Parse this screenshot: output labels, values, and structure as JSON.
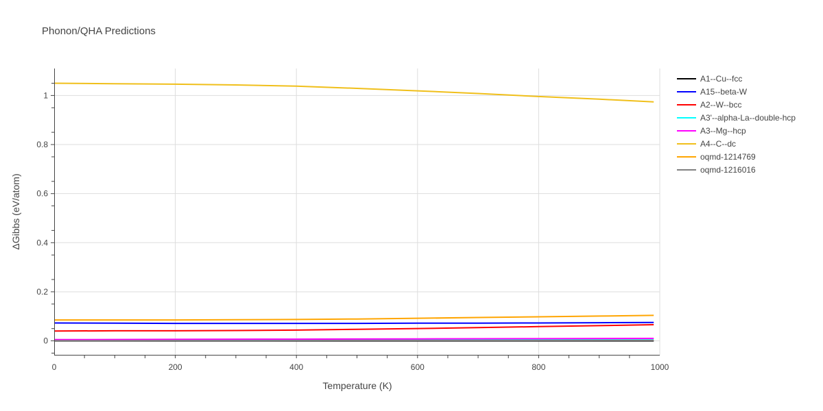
{
  "chart_data": {
    "type": "line",
    "title": "Phonon/QHA Predictions",
    "xlabel": "Temperature (K)",
    "ylabel": "ΔGibbs (eV/atom)",
    "xlim": [
      0,
      1000
    ],
    "ylim": [
      -0.057,
      1.11
    ],
    "xticks": [
      0,
      200,
      400,
      600,
      800,
      1000
    ],
    "yticks": [
      0,
      0.2,
      0.4,
      0.6,
      0.8,
      1
    ],
    "grid": true,
    "legend_position": "right",
    "series": [
      {
        "name": "A1--Cu--fcc",
        "color": "#000000",
        "x": [
          0,
          990
        ],
        "y": [
          0,
          0
        ]
      },
      {
        "name": "A15--beta-W",
        "color": "#0000ff",
        "x": [
          0,
          100,
          200,
          300,
          400,
          500,
          600,
          700,
          800,
          900,
          990
        ],
        "y": [
          0.073,
          0.072,
          0.071,
          0.071,
          0.071,
          0.071,
          0.072,
          0.072,
          0.073,
          0.074,
          0.075
        ]
      },
      {
        "name": "A2--W--bcc",
        "color": "#ff0000",
        "x": [
          0,
          100,
          200,
          300,
          400,
          500,
          600,
          700,
          800,
          900,
          990
        ],
        "y": [
          0.04,
          0.041,
          0.041,
          0.042,
          0.044,
          0.047,
          0.05,
          0.054,
          0.058,
          0.062,
          0.066
        ]
      },
      {
        "name": "A3'--alpha-La--double-hcp",
        "color": "#00ffff",
        "x": [
          0,
          200,
          400,
          600,
          800,
          990
        ],
        "y": [
          0.004,
          0.005,
          0.005,
          0.006,
          0.007,
          0.008
        ]
      },
      {
        "name": "A3--Mg--hcp",
        "color": "#ff00ff",
        "x": [
          0,
          200,
          400,
          600,
          800,
          990
        ],
        "y": [
          0.005,
          0.006,
          0.007,
          0.008,
          0.009,
          0.01
        ]
      },
      {
        "name": "A4--C--dc",
        "color": "#f0bf1a",
        "x": [
          0,
          100,
          200,
          300,
          400,
          500,
          600,
          700,
          800,
          900,
          990
        ],
        "y": [
          1.05,
          1.048,
          1.046,
          1.043,
          1.038,
          1.029,
          1.019,
          1.008,
          0.996,
          0.985,
          0.974
        ]
      },
      {
        "name": "oqmd-1214769",
        "color": "#ffa500",
        "x": [
          0,
          100,
          200,
          300,
          400,
          500,
          600,
          700,
          800,
          900,
          990
        ],
        "y": [
          0.085,
          0.085,
          0.085,
          0.086,
          0.087,
          0.089,
          0.092,
          0.095,
          0.098,
          0.101,
          0.104
        ]
      },
      {
        "name": "oqmd-1216016",
        "color": "#808080",
        "x": [
          0,
          990
        ],
        "y": [
          0.001,
          0.002
        ]
      }
    ]
  }
}
